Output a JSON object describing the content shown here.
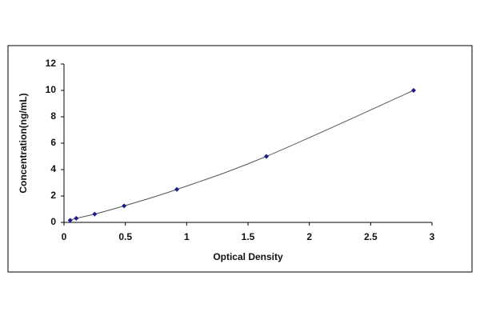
{
  "chart_data": {
    "type": "scatter",
    "x_label": "Optical Density",
    "y_label": "Concentration(ng/mL)",
    "series": [
      {
        "color": "#1a1a8c",
        "line_color": "#555555",
        "x": [
          0.05,
          0.1,
          0.25,
          0.49,
          0.92,
          1.65,
          2.85
        ],
        "values": [
          0.16,
          0.31,
          0.63,
          1.25,
          2.5,
          5,
          10
        ]
      }
    ],
    "xlim": [
      0,
      3
    ],
    "xticks": [
      0,
      0.5,
      1,
      1.5,
      2,
      2.5,
      3
    ],
    "ylim": [
      0,
      12
    ],
    "yticks": [
      0,
      2,
      4,
      6,
      8,
      10,
      12
    ]
  }
}
